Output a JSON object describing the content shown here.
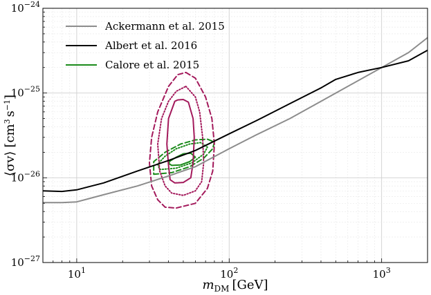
{
  "chart_data": {
    "type": "line",
    "xscale": "log",
    "yscale": "log",
    "xlim": [
      6,
      2000
    ],
    "ylim": [
      1e-27,
      1e-24
    ],
    "grid": true,
    "legend_position": "top-left",
    "xlabel": {
      "main": "m",
      "sub": "DM",
      "unit": "[GeV]"
    },
    "ylabel": {
      "main": "⟨σv⟩",
      "unit_open": "[cm",
      "unit_exp1": "3",
      "unit_mid": "s",
      "unit_exp2": "−1",
      "unit_close": "]"
    },
    "x_ticks": [
      {
        "value": 10,
        "base": "10",
        "exp": "1"
      },
      {
        "value": 100,
        "base": "10",
        "exp": "2"
      },
      {
        "value": 1000,
        "base": "10",
        "exp": "3"
      }
    ],
    "y_ticks": [
      {
        "value": 1e-27,
        "base": "10",
        "exp": "−27"
      },
      {
        "value": 1e-26,
        "base": "10",
        "exp": "−26"
      },
      {
        "value": 1e-25,
        "base": "10",
        "exp": "−25"
      },
      {
        "value": 1e-24,
        "base": "10",
        "exp": "−24"
      }
    ],
    "series": [
      {
        "name": "Ackermann et al. 2015",
        "color": "#8c8c8c",
        "x": [
          6,
          8,
          10,
          15,
          25,
          40,
          60,
          100,
          150,
          250,
          400,
          600,
          1000,
          1500,
          2000
        ],
        "y": [
          5.1e-27,
          5.1e-27,
          5.2e-27,
          6.3e-27,
          8e-27,
          1.05e-26,
          1.35e-26,
          2.2e-26,
          3.2e-26,
          5e-26,
          8e-26,
          1.2e-25,
          2e-25,
          3e-25,
          4.5e-25
        ]
      },
      {
        "name": "Albert et al. 2016",
        "color": "#000000",
        "x": [
          6,
          8,
          10,
          15,
          25,
          40,
          60,
          100,
          150,
          250,
          400,
          500,
          700,
          1000,
          1500,
          2000
        ],
        "y": [
          7e-27,
          6.9e-27,
          7.2e-27,
          8.7e-27,
          1.2e-26,
          1.6e-26,
          2.1e-26,
          3.3e-26,
          4.7e-26,
          7.5e-26,
          1.15e-25,
          1.45e-25,
          1.75e-25,
          2e-25,
          2.4e-25,
          3.2e-25
        ]
      },
      {
        "name": "Calore et al. 2015",
        "color": "#1a8a1a"
      }
    ],
    "contours": [
      {
        "group": "Calore et al. 2015",
        "color": "#1a8a1a",
        "style": "solid",
        "x": [
          42,
          48,
          55,
          60,
          56,
          50,
          45,
          41,
          40,
          42
        ],
        "y": [
          1.4e-26,
          1.42e-26,
          1.55e-26,
          1.75e-26,
          1.95e-26,
          1.92e-26,
          1.75e-26,
          1.58e-26,
          1.48e-26,
          1.4e-26
        ]
      },
      {
        "group": "Calore et al. 2015",
        "color": "#1a8a1a",
        "style": "dotted",
        "x": [
          35,
          45,
          57,
          68,
          72,
          65,
          55,
          45,
          38,
          34,
          35
        ],
        "y": [
          1.25e-26,
          1.3e-26,
          1.5e-26,
          1.9e-26,
          2.3e-26,
          2.6e-26,
          2.5e-26,
          2.2e-26,
          1.8e-26,
          1.45e-26,
          1.25e-26
        ]
      },
      {
        "group": "Calore et al. 2015",
        "color": "#1a8a1a",
        "style": "dashed",
        "x": [
          32,
          42,
          55,
          68,
          78,
          80,
          72,
          60,
          48,
          38,
          32,
          32
        ],
        "y": [
          1.1e-26,
          1.15e-26,
          1.35e-26,
          1.7e-26,
          2.2e-26,
          2.65e-26,
          2.85e-26,
          2.8e-26,
          2.5e-26,
          2e-26,
          1.55e-26,
          1.1e-26
        ]
      },
      {
        "color": "#a3195b",
        "style": "solid",
        "x": [
          44,
          40,
          39,
          40,
          41,
          44,
          50,
          56,
          58,
          59,
          58,
          54,
          50,
          46,
          44
        ],
        "y": [
          8e-26,
          5e-26,
          2.5e-26,
          1.4e-26,
          9.5e-27,
          8.7e-27,
          8.8e-27,
          1e-26,
          1.5e-26,
          3e-26,
          5e-26,
          7.8e-26,
          8.4e-26,
          8.3e-26,
          8e-26
        ]
      },
      {
        "color": "#a3195b",
        "style": "dotted",
        "x": [
          52,
          60,
          64,
          67,
          68,
          66,
          60,
          50,
          42,
          38,
          35,
          34,
          36,
          40,
          45,
          52
        ],
        "y": [
          1.2e-25,
          9e-26,
          6e-26,
          3e-26,
          1.5e-26,
          9e-27,
          7e-27,
          6.2e-27,
          6.6e-27,
          8e-27,
          1.2e-26,
          2.5e-26,
          5e-26,
          8e-26,
          1.05e-25,
          1.2e-25
        ]
      },
      {
        "color": "#a3195b",
        "style": "dashed",
        "x": [
          52,
          60,
          70,
          77,
          80,
          78,
          72,
          60,
          45,
          38,
          34,
          31,
          30,
          31,
          34,
          40,
          46,
          52
        ],
        "y": [
          1.75e-25,
          1.5e-25,
          9e-26,
          5e-26,
          2.5e-26,
          1.2e-26,
          7.5e-27,
          5e-27,
          4.4e-27,
          4.5e-27,
          5.5e-27,
          8e-27,
          1.5e-26,
          3e-26,
          6e-26,
          1.2e-25,
          1.65e-25,
          1.75e-25
        ]
      }
    ]
  }
}
